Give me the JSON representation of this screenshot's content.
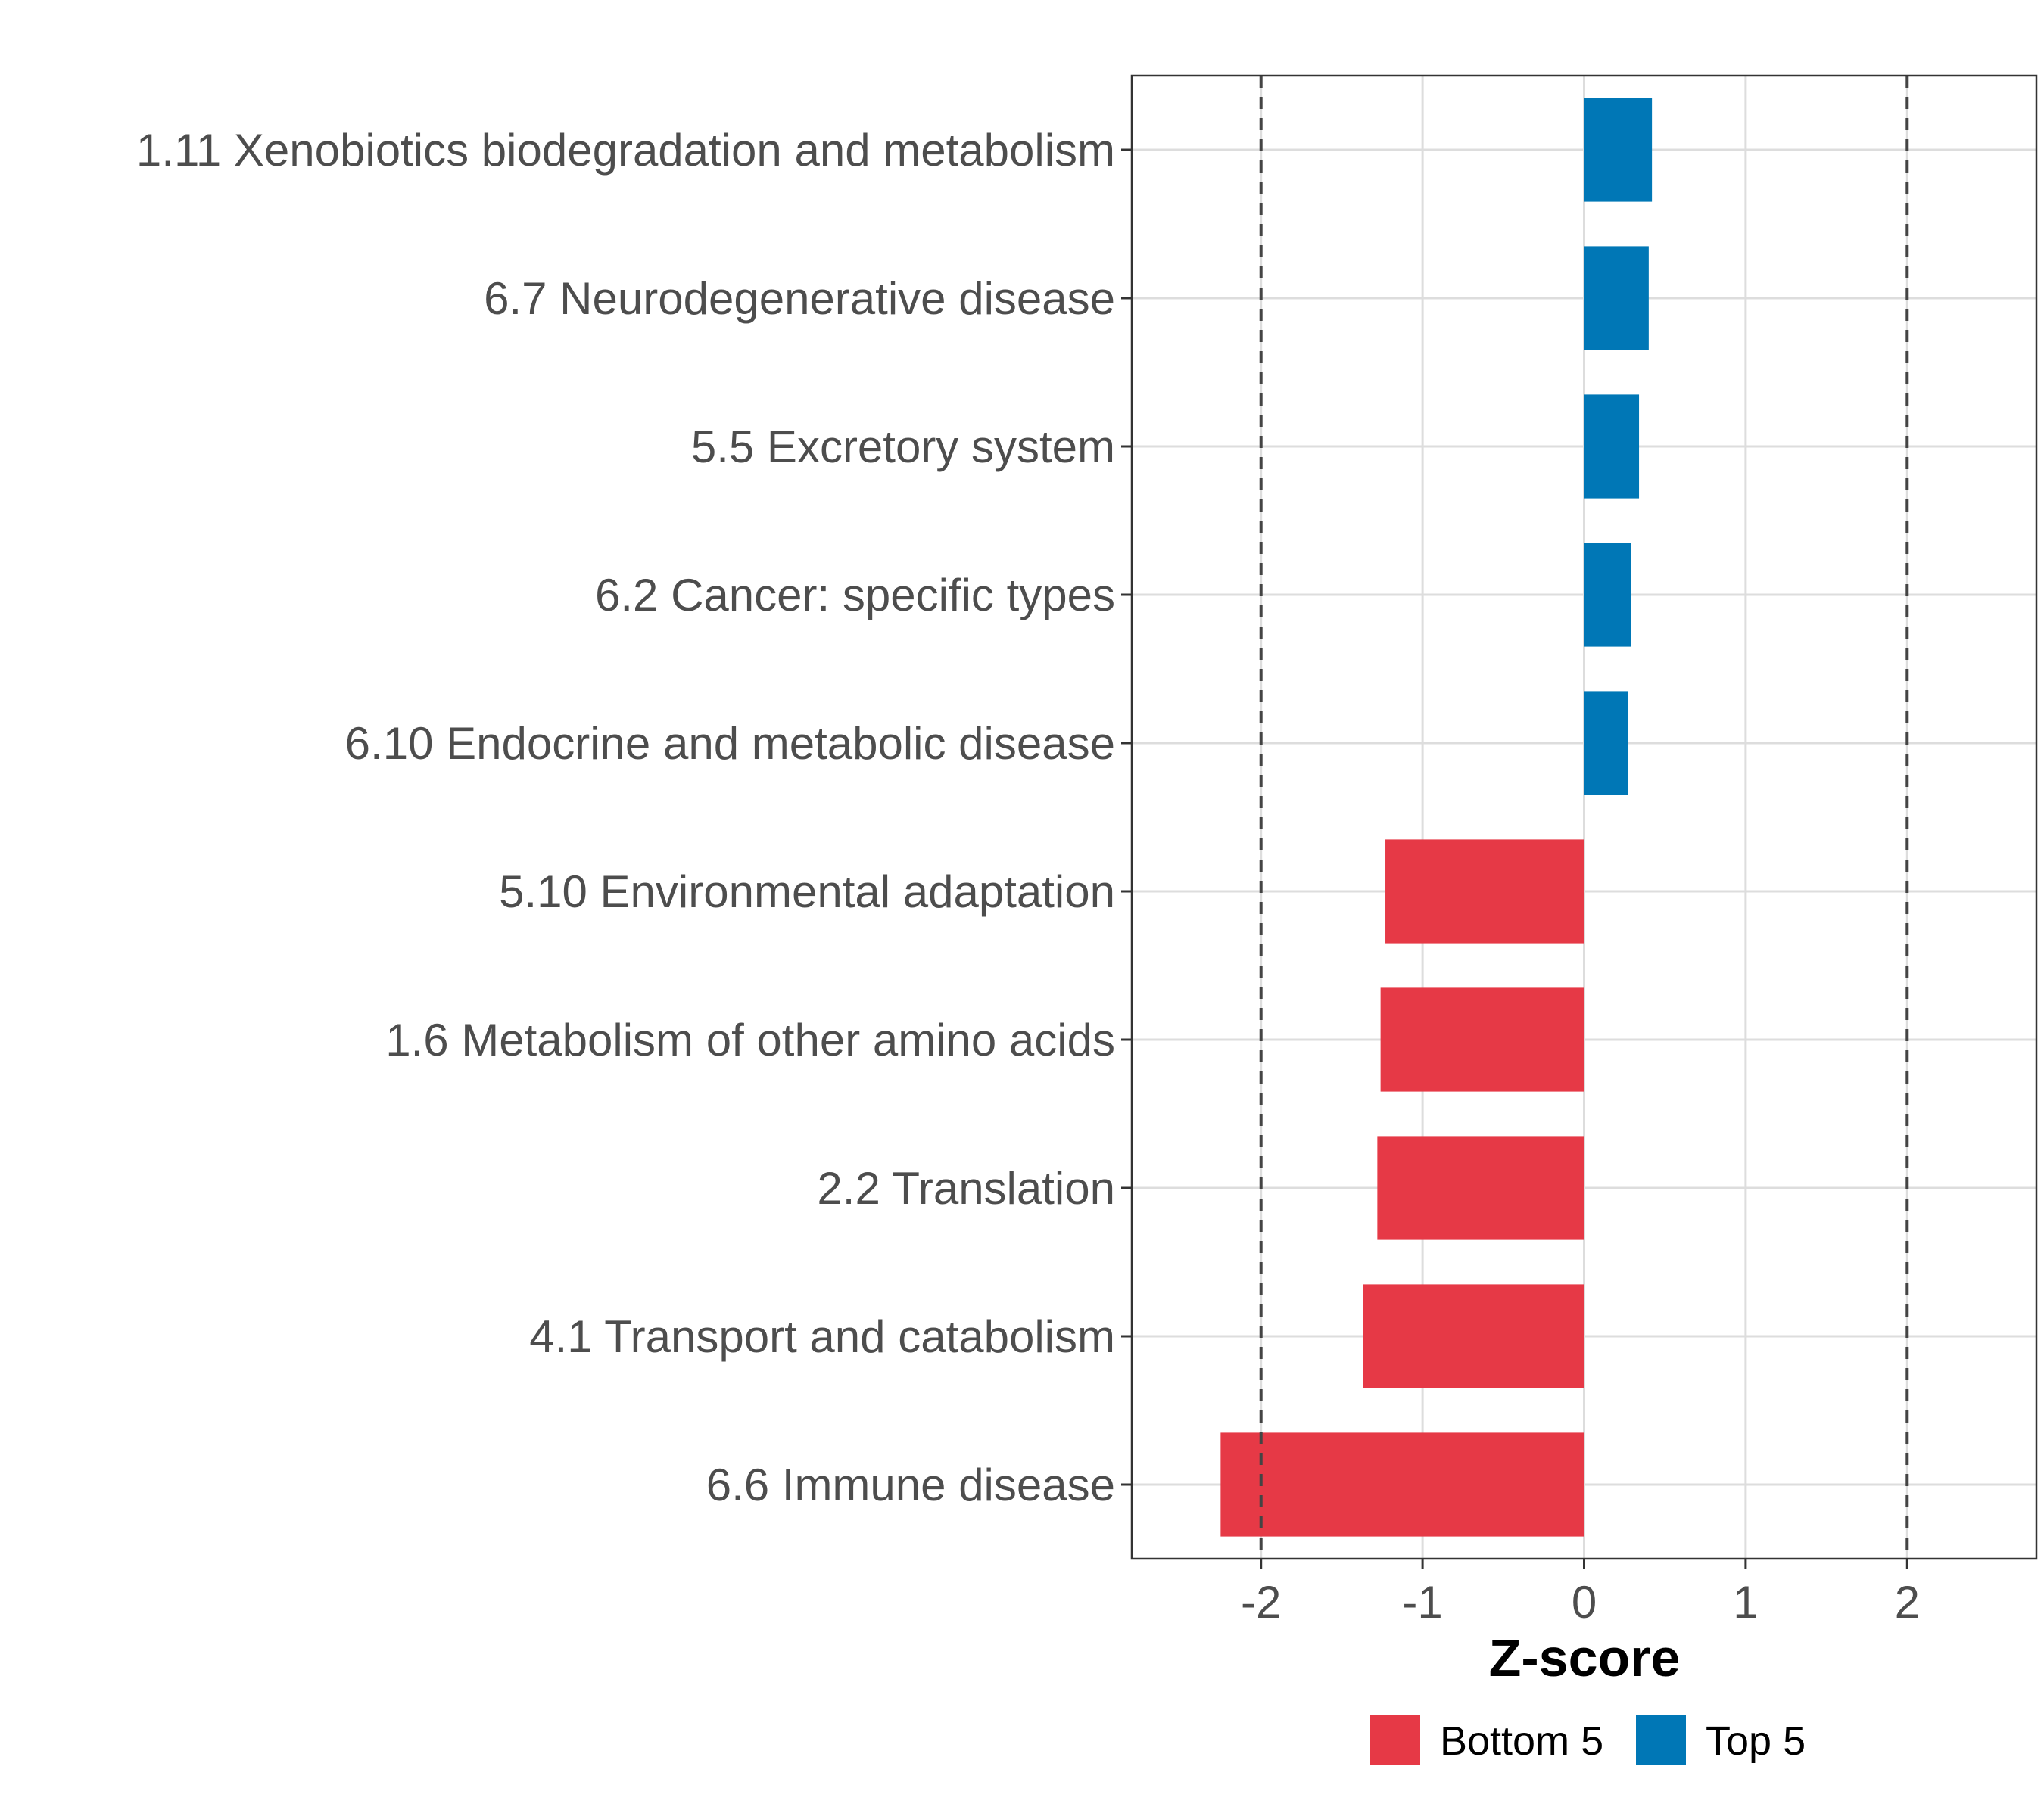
{
  "chart_data": {
    "type": "bar",
    "orientation": "horizontal",
    "title": "",
    "xlabel": "Z-score",
    "ylabel": "",
    "xlim": [
      -2.8,
      2.8
    ],
    "xticks": [
      "-2",
      "-1",
      "0",
      "1",
      "2"
    ],
    "xtick_values": [
      -2,
      -1,
      0,
      1,
      2
    ],
    "reference_lines": [
      -2,
      2
    ],
    "grid": true,
    "categories": [
      "1.11 Xenobiotics biodegradation and metabolism",
      "6.7 Neurodegenerative disease",
      "5.5 Excretory system",
      "6.2 Cancer: specific types",
      "6.10 Endocrine and metabolic disease",
      "5.10 Environmental adaptation",
      "1.6 Metabolism of other amino acids",
      "2.2 Translation",
      "4.1 Transport and catabolism",
      "6.6 Immune disease"
    ],
    "values": [
      0.42,
      0.4,
      0.34,
      0.29,
      0.27,
      -1.23,
      -1.26,
      -1.28,
      -1.37,
      -2.25
    ],
    "groups": [
      "Top 5",
      "Top 5",
      "Top 5",
      "Top 5",
      "Top 5",
      "Bottom 5",
      "Bottom 5",
      "Bottom 5",
      "Bottom 5",
      "Bottom 5"
    ],
    "legend": [
      {
        "name": "Bottom 5",
        "color": "#E63946"
      },
      {
        "name": "Top 5",
        "color": "#0077B6"
      }
    ],
    "legend_position": "bottom"
  }
}
